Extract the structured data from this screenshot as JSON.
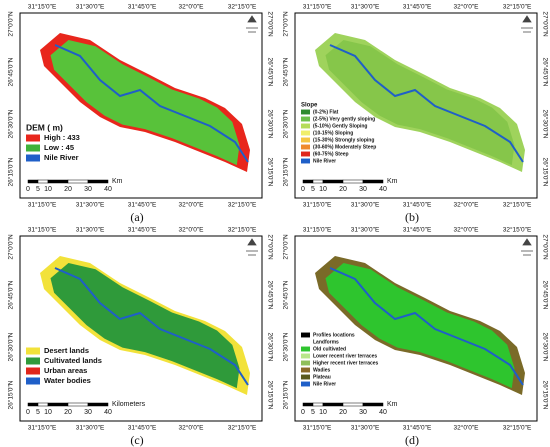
{
  "panels": [
    {
      "label": "(a)",
      "top_ticks": [
        "31°15'0\"E",
        "31°30'0\"E",
        "31°45'0\"E",
        "32°0'0\"E",
        "32°15'0\"E"
      ],
      "bottom_ticks": [
        "31°15'0\"E",
        "31°30'0\"E",
        "31°45'0\"E",
        "32°0'0\"E",
        "32°15'0\"E"
      ],
      "left_ticks": [
        "27°0'0\"N",
        "26°45'0\"N",
        "26°30'0\"N",
        "26°15'0\"N"
      ],
      "right_ticks": [
        "27°0'0\"N",
        "26°45'0\"N",
        "26°30'0\"N",
        "26°15'0\"N"
      ],
      "legend": {
        "title": "DEM ( m)",
        "items": [
          {
            "label": "High : 433",
            "color": "#e8261c"
          },
          {
            "label": "Low : 45",
            "color": "#3fb23a"
          },
          {
            "label": "Nile River",
            "color": "#1f5fc8"
          }
        ]
      },
      "scale": {
        "labels": [
          "0",
          "5",
          "10",
          "20",
          "30",
          "40"
        ],
        "unit": "Km"
      },
      "outer_color": "#e8261c",
      "inner_color": "#58c23a"
    },
    {
      "label": "(b)",
      "top_ticks": [
        "31°15'0\"E",
        "31°30'0\"E",
        "31°45'0\"E",
        "32°0'0\"E",
        "32°15'0\"E"
      ],
      "bottom_ticks": [
        "31°15'0\"E",
        "31°30'0\"E",
        "31°45'0\"E",
        "32°0'0\"E",
        "32°15'0\"E"
      ],
      "left_ticks": [
        "27°0'0\"N",
        "26°45'0\"N",
        "26°30'0\"N",
        "26°15'0\"N"
      ],
      "right_ticks": [
        "27°0'0\"N",
        "26°45'0\"N",
        "26°30'0\"N",
        "26°15'0\"N"
      ],
      "legend": {
        "title": "Slope",
        "items": [
          {
            "label": "(0-2%) Flat",
            "color": "#2e8b2e"
          },
          {
            "label": "(2-5%) Very gently sloping",
            "color": "#6cc04a"
          },
          {
            "label": "(5-10%) Gently Sloping",
            "color": "#b5dc5a"
          },
          {
            "label": "(10-15%) Sloping",
            "color": "#f0ee6a"
          },
          {
            "label": "(15-30%) Strongly sloping",
            "color": "#f5c542"
          },
          {
            "label": "(30-60%) Moderately Steep",
            "color": "#ef8a2c"
          },
          {
            "label": "(60-75%) Steep",
            "color": "#e0261c"
          },
          {
            "label": "Nile River",
            "color": "#1f5fc8"
          }
        ]
      },
      "scale": {
        "labels": [
          "0",
          "5",
          "10",
          "20",
          "30",
          "40"
        ],
        "unit": "Km"
      },
      "outer_color": "#9fd35c",
      "inner_color": "#86c64a"
    },
    {
      "label": "(c)",
      "top_ticks": [
        "31°15'0\"E",
        "31°30'0\"E",
        "31°45'0\"E",
        "32°0'0\"E",
        "32°15'0\"E"
      ],
      "bottom_ticks": [
        "31°15'0\"E",
        "31°30'0\"E",
        "31°45'0\"E",
        "32°0'0\"E",
        "32°15'0\"E"
      ],
      "left_ticks": [
        "27°0'0\"N",
        "26°45'0\"N",
        "26°30'0\"N",
        "26°15'0\"N"
      ],
      "right_ticks": [
        "27°0'0\"N",
        "26°45'0\"N",
        "26°30'0\"N",
        "26°15'0\"N"
      ],
      "legend": {
        "title": null,
        "items": [
          {
            "label": "Desert lands",
            "color": "#f2e23a"
          },
          {
            "label": "Cultivated lands",
            "color": "#2f9a3a"
          },
          {
            "label": "Urban areas",
            "color": "#e0261c"
          },
          {
            "label": "Water bodies",
            "color": "#1f5fc8"
          }
        ]
      },
      "scale": {
        "labels": [
          "0",
          "5",
          "10",
          "20",
          "30",
          "40"
        ],
        "unit": "Kilometers"
      },
      "outer_color": "#f2e23a",
      "inner_color": "#2f9a3a"
    },
    {
      "label": "(d)",
      "top_ticks": [
        "31°15'0\"E",
        "31°30'0\"E",
        "31°45'0\"E",
        "32°0'0\"E",
        "32°15'0\"E"
      ],
      "bottom_ticks": [
        "31°15'0\"E",
        "31°30'0\"E",
        "31°45'0\"E",
        "32°0'0\"E",
        "32°15'0\"E"
      ],
      "left_ticks": [
        "27°0'0\"N",
        "26°45'0\"N",
        "26°30'0\"N",
        "26°15'0\"N"
      ],
      "right_ticks": [
        "27°0'0\"N",
        "26°45'0\"N",
        "26°30'0\"N",
        "26°15'0\"N"
      ],
      "legend": {
        "title": null,
        "items": [
          {
            "label": "Profiles locations",
            "color": "#000000"
          },
          {
            "label": "Landforms",
            "color": null
          },
          {
            "label": "Old cultivated",
            "color": "#2ec52e"
          },
          {
            "label": "Lower recent river terraces",
            "color": "#b8e68a"
          },
          {
            "label": "Higher recent river terraces",
            "color": "#8fbf5a"
          },
          {
            "label": "Wadies",
            "color": "#8a6a2a"
          },
          {
            "label": "Plateau",
            "color": "#5a5a1e"
          },
          {
            "label": "Nile River",
            "color": "#1f5fc8"
          }
        ]
      },
      "scale": {
        "labels": [
          "0",
          "5",
          "10",
          "20",
          "30",
          "40"
        ],
        "unit": "Km"
      },
      "outer_color": "#7a6a28",
      "inner_color": "#2ec52e"
    }
  ]
}
